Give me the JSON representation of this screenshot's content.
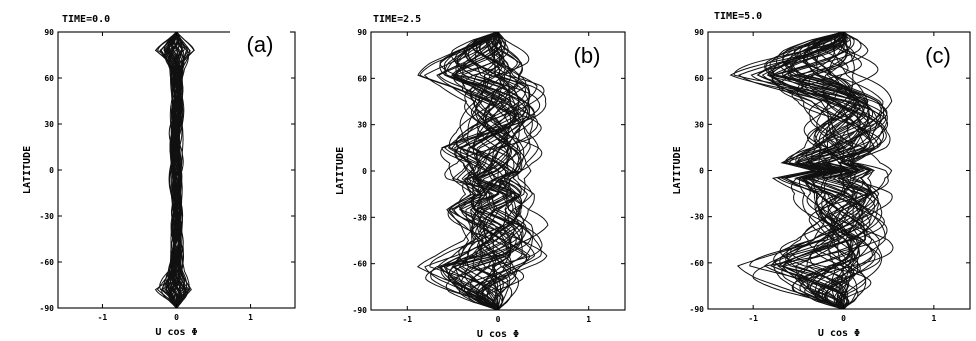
{
  "chart_data": [
    {
      "type": "line",
      "panel_label": "(a)",
      "time_label": "TIME=0.0",
      "xlabel": "U cos Φ",
      "ylabel": "LATITUDE",
      "xlim": [
        -1.6,
        1.6
      ],
      "ylim": [
        -90,
        90
      ],
      "xticks": [
        -1,
        0,
        1
      ],
      "yticks": [
        -90,
        -60,
        -30,
        0,
        30,
        60,
        90
      ],
      "xtick_labels": [
        "-1",
        "0",
        "1"
      ],
      "ytick_labels": [
        "-90",
        "-60",
        "-30",
        "0",
        "30",
        "60",
        "90"
      ],
      "grid": false,
      "series_count": 50,
      "envelope": {
        "lat": [
          -90,
          -85,
          -78,
          -72,
          -66,
          -60,
          -50,
          -40,
          -30,
          -20,
          -10,
          0,
          10,
          20,
          30,
          40,
          50,
          60,
          66,
          72,
          78,
          85,
          90
        ],
        "umin": [
          0,
          -0.12,
          -0.32,
          -0.22,
          -0.13,
          -0.1,
          -0.09,
          -0.1,
          -0.1,
          -0.09,
          -0.1,
          -0.1,
          -0.09,
          -0.1,
          -0.1,
          -0.1,
          -0.09,
          -0.1,
          -0.13,
          -0.22,
          -0.32,
          -0.12,
          0
        ],
        "umax": [
          0,
          0.12,
          0.32,
          0.22,
          0.13,
          0.1,
          0.09,
          0.1,
          0.1,
          0.09,
          0.1,
          0.1,
          0.09,
          0.1,
          0.1,
          0.1,
          0.09,
          0.1,
          0.13,
          0.22,
          0.32,
          0.12,
          0
        ]
      }
    },
    {
      "type": "line",
      "panel_label": "(b)",
      "time_label": "TIME=2.5",
      "xlabel": "U cos Φ",
      "ylabel": "LATITUDE",
      "xlim": [
        -1.4,
        1.4
      ],
      "ylim": [
        -90,
        90
      ],
      "xticks": [
        -1,
        0,
        1
      ],
      "yticks": [
        -90,
        -60,
        -30,
        0,
        30,
        60,
        90
      ],
      "xtick_labels": [
        "-1",
        "0",
        "1"
      ],
      "ytick_labels": [
        "-90",
        "-60",
        "-30",
        "0",
        "30",
        "60",
        "90"
      ],
      "grid": false,
      "series_count": 50,
      "envelope": {
        "lat": [
          -90,
          -85,
          -78,
          -70,
          -62,
          -55,
          -45,
          -35,
          -25,
          -15,
          -5,
          0,
          5,
          15,
          25,
          35,
          45,
          55,
          62,
          70,
          78,
          85,
          90
        ],
        "umin": [
          0,
          -0.3,
          -0.6,
          -0.85,
          -1.0,
          -0.75,
          -0.5,
          -0.55,
          -0.7,
          -0.5,
          -0.7,
          -0.6,
          -0.55,
          -0.8,
          -0.6,
          -0.55,
          -0.5,
          -0.75,
          -1.0,
          -0.85,
          -0.6,
          -0.3,
          0
        ],
        "umax": [
          0,
          0.15,
          0.3,
          0.45,
          0.5,
          0.6,
          0.55,
          0.6,
          0.5,
          0.55,
          0.45,
          0.5,
          0.45,
          0.55,
          0.5,
          0.6,
          0.55,
          0.6,
          0.5,
          0.45,
          0.3,
          0.15,
          0
        ]
      }
    },
    {
      "type": "line",
      "panel_label": "(c)",
      "time_label": "TIME=5.0",
      "xlabel": "U cos Φ",
      "ylabel": "LATITUDE",
      "xlim": [
        -1.5,
        1.4
      ],
      "ylim": [
        -90,
        90
      ],
      "xticks": [
        -1,
        0,
        1
      ],
      "yticks": [
        -90,
        -60,
        -30,
        0,
        30,
        60,
        90
      ],
      "xtick_labels": [
        "-1",
        "0",
        "1"
      ],
      "ytick_labels": [
        "-90",
        "-60",
        "-30",
        "0",
        "30",
        "60",
        "90"
      ],
      "grid": false,
      "series_count": 50,
      "envelope": {
        "lat": [
          -90,
          -85,
          -78,
          -70,
          -62,
          -55,
          -45,
          -35,
          -25,
          -15,
          -5,
          0,
          5,
          15,
          25,
          35,
          45,
          55,
          62,
          70,
          78,
          85,
          90
        ],
        "umin": [
          0,
          -0.4,
          -0.8,
          -1.1,
          -1.3,
          -1.0,
          -0.6,
          -0.5,
          -0.55,
          -0.6,
          -0.9,
          -0.45,
          -0.9,
          -0.6,
          -0.55,
          -0.5,
          -0.6,
          -1.0,
          -1.3,
          -1.1,
          -0.8,
          -0.4,
          0
        ],
        "umax": [
          0,
          0.2,
          0.35,
          0.45,
          0.55,
          0.6,
          0.65,
          0.6,
          0.55,
          0.6,
          0.5,
          0.55,
          0.5,
          0.6,
          0.55,
          0.6,
          0.65,
          0.6,
          0.55,
          0.45,
          0.35,
          0.2,
          0
        ]
      }
    }
  ]
}
